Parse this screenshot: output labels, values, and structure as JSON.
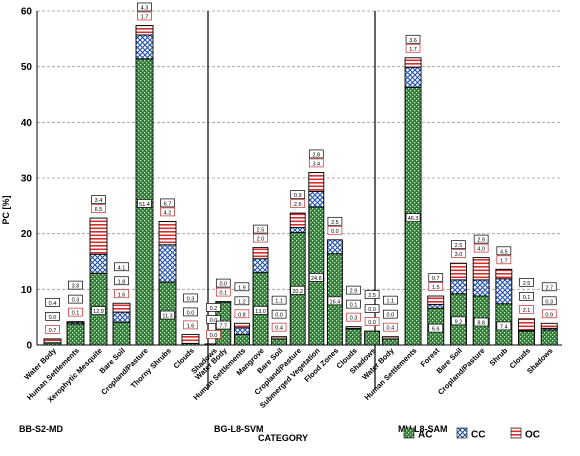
{
  "chart_data": {
    "type": "bar",
    "stacked": true,
    "ylabel": "PC [%]",
    "xlabel": "CATEGORY",
    "ylim": [
      0,
      60
    ],
    "yticks": [
      "0",
      "10",
      "20",
      "30",
      "40",
      "50",
      "60"
    ],
    "grid": "horizontal dashed",
    "legend_position": "bottom-right",
    "colors": {
      "AC": "#2e7d32",
      "CC": "#1f4fa8",
      "OC": "#d32f2f"
    },
    "series_names": [
      "AC",
      "CC",
      "OC"
    ],
    "groups": [
      {
        "name": "BB-S2-MD",
        "categories": [
          {
            "name": "Water Body",
            "AC": 0.4,
            "CC": 0.0,
            "OC": 0.7
          },
          {
            "name": "Human Settlements",
            "AC": 3.8,
            "CC": 0.3,
            "OC": 0.1
          },
          {
            "name": "Xerophytic Mesquite",
            "AC": 12.9,
            "CC": 3.4,
            "OC": 6.5
          },
          {
            "name": "Bare Soil",
            "AC": 4.1,
            "CC": 1.8,
            "OC": 1.6
          },
          {
            "name": "Cropland/Pasture",
            "AC": 51.4,
            "CC": 4.3,
            "OC": 1.7
          },
          {
            "name": "Thorny Shrubs",
            "AC": 11.3,
            "CC": 6.7,
            "OC": 4.2
          },
          {
            "name": "Clouds",
            "AC": 0.3,
            "CC": 0.0,
            "OC": 1.6
          },
          {
            "name": "Shadows",
            "AC": 0.2,
            "CC": 0.0,
            "OC": 0.0
          }
        ]
      },
      {
        "name": "BG-L8-SVM",
        "categories": [
          {
            "name": "Water Body",
            "AC": 7.7,
            "CC": 0.0,
            "OC": 0.1
          },
          {
            "name": "Human Settlements",
            "AC": 1.9,
            "CC": 1.2,
            "OC": 0.8
          },
          {
            "name": "Mangrove",
            "AC": 13.0,
            "CC": 2.5,
            "OC": 2.0
          },
          {
            "name": "Bare Soil",
            "AC": 1.1,
            "CC": 0.0,
            "OC": 0.4
          },
          {
            "name": "Cropland/Pasture",
            "AC": 20.2,
            "CC": 0.9,
            "OC": 2.6
          },
          {
            "name": "Submerged Vegetation",
            "AC": 24.8,
            "CC": 2.8,
            "OC": 3.4
          },
          {
            "name": "Flood Zones",
            "AC": 16.4,
            "CC": 2.5,
            "OC": 0.0
          },
          {
            "name": "Clouds",
            "AC": 2.9,
            "CC": 0.1,
            "OC": 0.3
          },
          {
            "name": "Shadows",
            "AC": 2.5,
            "CC": 0.0,
            "OC": 0.0
          }
        ]
      },
      {
        "name": "MV-L8-SAM",
        "categories": [
          {
            "name": "Water Body",
            "AC": 1.1,
            "CC": 0.0,
            "OC": 0.4
          },
          {
            "name": "Human Settlements",
            "AC": 46.3,
            "CC": 3.6,
            "OC": 1.7
          },
          {
            "name": "Forest",
            "AC": 6.6,
            "CC": 0.7,
            "OC": 1.5
          },
          {
            "name": "Bare Soil",
            "AC": 9.2,
            "CC": 2.5,
            "OC": 3.0
          },
          {
            "name": "Cropland/Pasture",
            "AC": 8.8,
            "CC": 2.9,
            "OC": 4.0
          },
          {
            "name": "Shrub",
            "AC": 7.4,
            "CC": 4.5,
            "OC": 1.7
          },
          {
            "name": "Clouds",
            "AC": 2.5,
            "CC": 0.1,
            "OC": 2.1
          },
          {
            "name": "Shadows",
            "AC": 2.7,
            "CC": 0.3,
            "OC": 0.9
          }
        ]
      }
    ]
  }
}
